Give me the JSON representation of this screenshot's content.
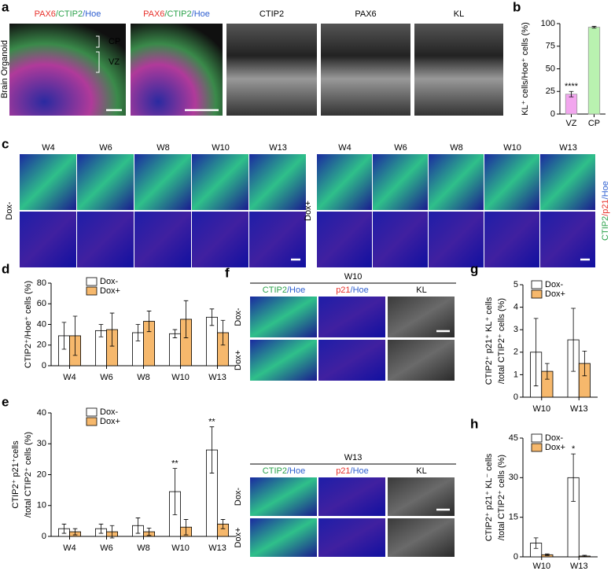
{
  "chart_data": [
    {
      "panel": "b",
      "type": "bar",
      "y_label": [
        "KL⁺ cells/Hoe⁺ cells (%)"
      ],
      "categories": [
        "VZ",
        "CP"
      ],
      "values": [
        22,
        96
      ],
      "errors": [
        3,
        1
      ],
      "colors": [
        "#f2a6ee",
        "#b9f2b0"
      ],
      "ylim": [
        0,
        100
      ],
      "yticks": [
        0,
        25,
        50,
        75,
        100
      ],
      "annotations": [
        {
          "text": "****",
          "x": "VZ"
        }
      ]
    },
    {
      "panel": "d",
      "type": "bar",
      "y_label": [
        "CTIP2⁺/Hoe⁺ cells (%)"
      ],
      "categories": [
        "W4",
        "W6",
        "W8",
        "W10",
        "W13"
      ],
      "series": [
        {
          "name": "Dox-",
          "color": "#ffffff",
          "values": [
            29,
            34,
            32,
            31,
            47
          ],
          "errors": [
            13,
            6,
            8,
            4,
            8
          ]
        },
        {
          "name": "Dox+",
          "color": "#f6b86c",
          "values": [
            29,
            35,
            43,
            45,
            32
          ],
          "errors": [
            19,
            16,
            10,
            18,
            12
          ]
        }
      ],
      "ylim": [
        0,
        80
      ],
      "yticks": [
        0,
        20,
        40,
        60,
        80
      ]
    },
    {
      "panel": "e",
      "type": "bar",
      "y_label": [
        "CTIP2⁺ p21⁺cells",
        "/total CTIP2⁺ cells (%)"
      ],
      "categories": [
        "W4",
        "W6",
        "W8",
        "W10",
        "W13"
      ],
      "series": [
        {
          "name": "Dox-",
          "color": "#ffffff",
          "values": [
            2.5,
            2.5,
            3.5,
            14.5,
            28
          ],
          "errors": [
            1.5,
            1.5,
            2.5,
            7.5,
            7.5
          ]
        },
        {
          "name": "Dox+",
          "color": "#f6b86c",
          "values": [
            1.5,
            1.5,
            1.5,
            3,
            4
          ],
          "errors": [
            1,
            2,
            1.2,
            2.5,
            1.5
          ]
        }
      ],
      "ylim": [
        0,
        40
      ],
      "yticks": [
        0,
        10,
        20,
        30,
        40
      ],
      "annotations": [
        {
          "text": "**",
          "x": "W10"
        },
        {
          "text": "**",
          "x": "W13"
        }
      ]
    },
    {
      "panel": "g",
      "type": "bar",
      "y_label": [
        "CTIP2⁺ p21⁺ KL⁺ cells",
        "/total CTIP2⁺ cells (%)"
      ],
      "categories": [
        "W10",
        "W13"
      ],
      "series": [
        {
          "name": "Dox-",
          "color": "#ffffff",
          "values": [
            2,
            2.55
          ],
          "errors": [
            1.5,
            1.4
          ]
        },
        {
          "name": "Dox+",
          "color": "#f6b86c",
          "values": [
            1.15,
            1.5
          ],
          "errors": [
            0.35,
            0.55
          ]
        }
      ],
      "ylim": [
        0,
        5
      ],
      "yticks": [
        0,
        1,
        2,
        3,
        4,
        5
      ]
    },
    {
      "panel": "h",
      "type": "bar",
      "y_label": [
        "CTIP2⁺ p21⁺ KL⁻ cells",
        "/total CTIP2⁺ cells (%)"
      ],
      "categories": [
        "W10",
        "W13"
      ],
      "series": [
        {
          "name": "Dox-",
          "color": "#ffffff",
          "values": [
            5.2,
            30
          ],
          "errors": [
            2,
            9
          ]
        },
        {
          "name": "Dox+",
          "color": "#f6b86c",
          "values": [
            0.8,
            0.3
          ],
          "errors": [
            0.3,
            0.3
          ]
        }
      ],
      "ylim": [
        0,
        45
      ],
      "yticks": [
        0,
        15,
        30,
        45
      ],
      "annotations": [
        {
          "text": "*",
          "x": "W13"
        }
      ]
    }
  ],
  "image_panels": {
    "a": {
      "letter": "a",
      "side_label": "Brain Organoid",
      "regions": [
        "CP",
        "VZ"
      ],
      "columns": [
        [
          {
            "text": "PAX6",
            "color": "#e8322c"
          },
          {
            "text": "/CTIP2",
            "color": "#2aa14a"
          },
          {
            "text": "/Hoe",
            "color": "#2e5fd0"
          }
        ],
        [
          {
            "text": "PAX6",
            "color": "#e8322c"
          },
          {
            "text": "/CTIP2",
            "color": "#2aa14a"
          },
          {
            "text": "/Hoe",
            "color": "#2e5fd0"
          }
        ],
        [
          {
            "text": "CTIP2",
            "color": "#000000"
          }
        ],
        [
          {
            "text": "PAX6",
            "color": "#000000"
          }
        ],
        [
          {
            "text": "KL",
            "color": "#000000"
          }
        ]
      ]
    },
    "c": {
      "letter": "c",
      "columns": [
        "W4",
        "W6",
        "W8",
        "W10",
        "W13"
      ],
      "groups": [
        "Dox-",
        "Dox+"
      ],
      "channel_label": [
        {
          "text": "CTIP2",
          "color": "#2aa14a"
        },
        {
          "text": "/p21",
          "color": "#e8322c"
        },
        {
          "text": "/Hoe",
          "color": "#2e5fd0"
        }
      ]
    },
    "f": {
      "letter": "f",
      "blocks": [
        {
          "title": "W10",
          "rows": [
            "Dox-",
            "Dox+"
          ],
          "columns": [
            [
              {
                "text": "CTIP2",
                "color": "#2aa14a"
              },
              {
                "text": "/Hoe",
                "color": "#2e5fd0"
              }
            ],
            [
              {
                "text": "p21",
                "color": "#e8322c"
              },
              {
                "text": "/Hoe",
                "color": "#2e5fd0"
              }
            ],
            [
              {
                "text": "KL",
                "color": "#000000"
              }
            ]
          ]
        },
        {
          "title": "W13",
          "rows": [
            "Dox-",
            "Dox+"
          ],
          "columns": [
            [
              {
                "text": "CTIP2",
                "color": "#2aa14a"
              },
              {
                "text": "/Hoe",
                "color": "#2e5fd0"
              }
            ],
            [
              {
                "text": "p21",
                "color": "#e8322c"
              },
              {
                "text": "/Hoe",
                "color": "#2e5fd0"
              }
            ],
            [
              {
                "text": "KL",
                "color": "#000000"
              }
            ]
          ]
        }
      ]
    }
  }
}
